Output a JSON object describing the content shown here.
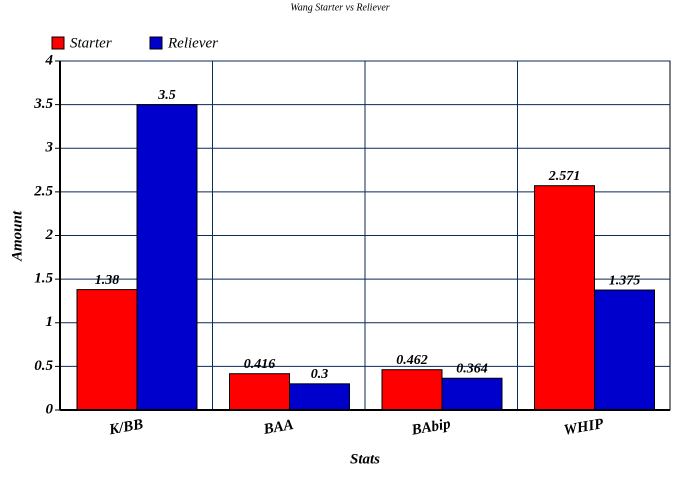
{
  "chart_data": {
    "type": "bar",
    "title": "Wang Starter vs Reliever",
    "x_label": "Stats",
    "y_label": "Amount",
    "categories": [
      "K/BB",
      "BAA",
      "BAbip",
      "WHIP"
    ],
    "series": [
      {
        "name": "Starter",
        "color": "#ff0000",
        "values": [
          1.38,
          0.416,
          0.462,
          2.571
        ]
      },
      {
        "name": "Reliever",
        "color": "#0000cc",
        "values": [
          3.5,
          0.3,
          0.364,
          1.375
        ]
      }
    ],
    "ylim": [
      0,
      4
    ],
    "yticks": [
      0,
      0.5,
      1,
      1.5,
      2,
      2.5,
      3,
      3.5,
      4
    ],
    "grid": true,
    "legend": "top-left"
  }
}
